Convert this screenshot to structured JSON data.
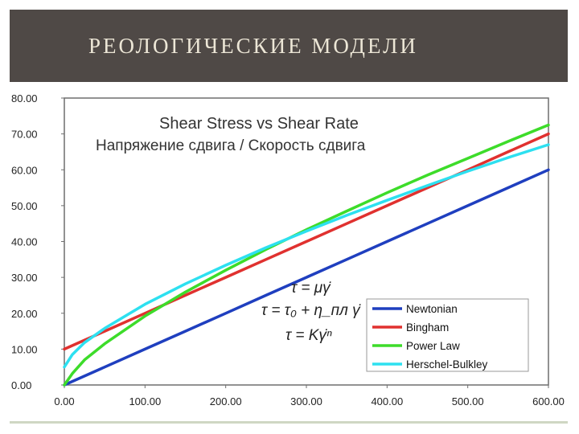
{
  "slide": {
    "title": "РЕОЛОГИЧЕСКИЕ МОДЕЛИ",
    "header_bg": "#4f4946",
    "title_color": "#ece6d6"
  },
  "chart_data": {
    "type": "line",
    "title": "Shear Stress vs Shear Rate",
    "subtitle": "Напряжение сдвига / Скорость сдвига",
    "xlabel": "",
    "ylabel": "",
    "xlim": [
      0,
      600
    ],
    "ylim": [
      0,
      80
    ],
    "x_ticks": [
      "0.00",
      "100.00",
      "200.00",
      "300.00",
      "400.00",
      "500.00",
      "600.00"
    ],
    "y_ticks": [
      "0.00",
      "10.00",
      "20.00",
      "30.00",
      "40.00",
      "50.00",
      "60.00",
      "70.00",
      "80.00"
    ],
    "grid": false,
    "legend_position": "bottom-right",
    "formulas": [
      "τ = μγ̇",
      "τ = τ₀ + η_пл γ̇",
      "τ = Kγ̇ⁿ"
    ],
    "series": [
      {
        "name": "Newtonian",
        "color": "#1f3fbf",
        "x": [
          0,
          50,
          100,
          150,
          200,
          250,
          300,
          350,
          400,
          450,
          500,
          550,
          600
        ],
        "y": [
          0,
          5,
          10,
          15,
          20,
          25,
          30,
          35,
          40,
          45,
          50,
          55,
          60
        ]
      },
      {
        "name": "Bingham",
        "color": "#e0312f",
        "x": [
          0,
          50,
          100,
          150,
          200,
          250,
          300,
          350,
          400,
          450,
          500,
          550,
          600
        ],
        "y": [
          10,
          15,
          20,
          25,
          30,
          35,
          40,
          45,
          50,
          55,
          60,
          65,
          70
        ]
      },
      {
        "name": "Power Law",
        "color": "#3ddc2a",
        "x": [
          0,
          10,
          25,
          50,
          100,
          150,
          200,
          250,
          300,
          350,
          400,
          450,
          500,
          550,
          600
        ],
        "y": [
          0,
          3.2,
          7.0,
          11.5,
          19.2,
          25.9,
          32.0,
          37.8,
          43.3,
          48.5,
          53.6,
          58.5,
          63.2,
          67.9,
          72.5
        ]
      },
      {
        "name": "Herschel-Bulkley",
        "color": "#2de0f0",
        "x": [
          0,
          10,
          25,
          50,
          100,
          150,
          200,
          250,
          300,
          350,
          400,
          450,
          500,
          550,
          600
        ],
        "y": [
          5,
          8.5,
          11.8,
          15.8,
          22.5,
          28.2,
          33.4,
          38.3,
          42.9,
          47.3,
          51.5,
          55.6,
          59.6,
          63.4,
          67.0
        ]
      }
    ]
  }
}
